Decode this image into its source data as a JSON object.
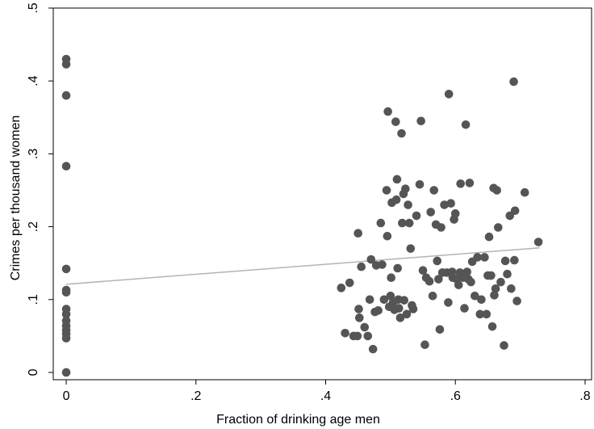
{
  "chart_data": {
    "type": "scatter",
    "title": "",
    "xlabel": "Fraction of drinking age men",
    "ylabel": "Crimes per thousand women",
    "xlim": [
      -0.02,
      0.81
    ],
    "ylim": [
      -0.01,
      0.5
    ],
    "xticks": [
      0,
      0.2,
      0.4,
      0.6,
      0.8
    ],
    "xtick_labels": [
      "0",
      ".2",
      ".4",
      ".6",
      ".8"
    ],
    "yticks": [
      0,
      0.1,
      0.2,
      0.3,
      0.4,
      0.5
    ],
    "ytick_labels": [
      "0",
      ".1",
      ".2",
      ".3",
      ".4",
      ".5"
    ],
    "grid": false,
    "legend": "none",
    "colors": {
      "points": "#555555",
      "fit_line": "#b4b4b4"
    },
    "fit_line": {
      "x": [
        0,
        0.73
      ],
      "y": [
        0.121,
        0.171
      ]
    },
    "points": [
      [
        0,
        0.43
      ],
      [
        0,
        0.423
      ],
      [
        0,
        0.38
      ],
      [
        0,
        0.283
      ],
      [
        0,
        0.142
      ],
      [
        0,
        0.113
      ],
      [
        0,
        0.11
      ],
      [
        0,
        0.087
      ],
      [
        0,
        0.08
      ],
      [
        0,
        0.071
      ],
      [
        0,
        0.064
      ],
      [
        0,
        0.058
      ],
      [
        0,
        0.053
      ],
      [
        0,
        0.047
      ],
      [
        0,
        0.0
      ],
      [
        0.424,
        0.116
      ],
      [
        0.43,
        0.054
      ],
      [
        0.437,
        0.123
      ],
      [
        0.443,
        0.05
      ],
      [
        0.449,
        0.05
      ],
      [
        0.45,
        0.191
      ],
      [
        0.451,
        0.087
      ],
      [
        0.452,
        0.075
      ],
      [
        0.455,
        0.145
      ],
      [
        0.46,
        0.062
      ],
      [
        0.465,
        0.05
      ],
      [
        0.468,
        0.1
      ],
      [
        0.47,
        0.155
      ],
      [
        0.473,
        0.032
      ],
      [
        0.476,
        0.083
      ],
      [
        0.478,
        0.147
      ],
      [
        0.481,
        0.085
      ],
      [
        0.485,
        0.205
      ],
      [
        0.487,
        0.148
      ],
      [
        0.49,
        0.1
      ],
      [
        0.494,
        0.25
      ],
      [
        0.495,
        0.187
      ],
      [
        0.496,
        0.358
      ],
      [
        0.498,
        0.09
      ],
      [
        0.5,
        0.105
      ],
      [
        0.501,
        0.13
      ],
      [
        0.502,
        0.233
      ],
      [
        0.504,
        0.096
      ],
      [
        0.506,
        0.086
      ],
      [
        0.508,
        0.344
      ],
      [
        0.509,
        0.237
      ],
      [
        0.51,
        0.265
      ],
      [
        0.511,
        0.143
      ],
      [
        0.512,
        0.1
      ],
      [
        0.513,
        0.088
      ],
      [
        0.515,
        0.075
      ],
      [
        0.517,
        0.328
      ],
      [
        0.518,
        0.205
      ],
      [
        0.52,
        0.245
      ],
      [
        0.521,
        0.099
      ],
      [
        0.523,
        0.252
      ],
      [
        0.525,
        0.08
      ],
      [
        0.527,
        0.23
      ],
      [
        0.529,
        0.205
      ],
      [
        0.531,
        0.17
      ],
      [
        0.533,
        0.092
      ],
      [
        0.535,
        0.087
      ],
      [
        0.54,
        0.215
      ],
      [
        0.545,
        0.258
      ],
      [
        0.547,
        0.345
      ],
      [
        0.55,
        0.14
      ],
      [
        0.553,
        0.038
      ],
      [
        0.555,
        0.13
      ],
      [
        0.56,
        0.125
      ],
      [
        0.562,
        0.22
      ],
      [
        0.565,
        0.105
      ],
      [
        0.567,
        0.25
      ],
      [
        0.57,
        0.203
      ],
      [
        0.572,
        0.153
      ],
      [
        0.574,
        0.128
      ],
      [
        0.576,
        0.059
      ],
      [
        0.578,
        0.199
      ],
      [
        0.58,
        0.137
      ],
      [
        0.583,
        0.23
      ],
      [
        0.587,
        0.137
      ],
      [
        0.589,
        0.096
      ],
      [
        0.59,
        0.382
      ],
      [
        0.593,
        0.232
      ],
      [
        0.595,
        0.138
      ],
      [
        0.596,
        0.13
      ],
      [
        0.598,
        0.21
      ],
      [
        0.6,
        0.218
      ],
      [
        0.602,
        0.128
      ],
      [
        0.605,
        0.12
      ],
      [
        0.607,
        0.137
      ],
      [
        0.608,
        0.259
      ],
      [
        0.612,
        0.13
      ],
      [
        0.614,
        0.088
      ],
      [
        0.616,
        0.34
      ],
      [
        0.618,
        0.138
      ],
      [
        0.62,
        0.128
      ],
      [
        0.622,
        0.26
      ],
      [
        0.624,
        0.124
      ],
      [
        0.626,
        0.152
      ],
      [
        0.63,
        0.105
      ],
      [
        0.634,
        0.158
      ],
      [
        0.638,
        0.08
      ],
      [
        0.64,
        0.1
      ],
      [
        0.645,
        0.158
      ],
      [
        0.648,
        0.08
      ],
      [
        0.65,
        0.133
      ],
      [
        0.652,
        0.186
      ],
      [
        0.655,
        0.133
      ],
      [
        0.657,
        0.063
      ],
      [
        0.659,
        0.253
      ],
      [
        0.66,
        0.106
      ],
      [
        0.662,
        0.115
      ],
      [
        0.664,
        0.25
      ],
      [
        0.666,
        0.199
      ],
      [
        0.67,
        0.124
      ],
      [
        0.675,
        0.037
      ],
      [
        0.677,
        0.153
      ],
      [
        0.68,
        0.135
      ],
      [
        0.684,
        0.215
      ],
      [
        0.686,
        0.115
      ],
      [
        0.69,
        0.399
      ],
      [
        0.691,
        0.154
      ],
      [
        0.692,
        0.222
      ],
      [
        0.695,
        0.098
      ],
      [
        0.707,
        0.247
      ],
      [
        0.728,
        0.179
      ]
    ]
  }
}
